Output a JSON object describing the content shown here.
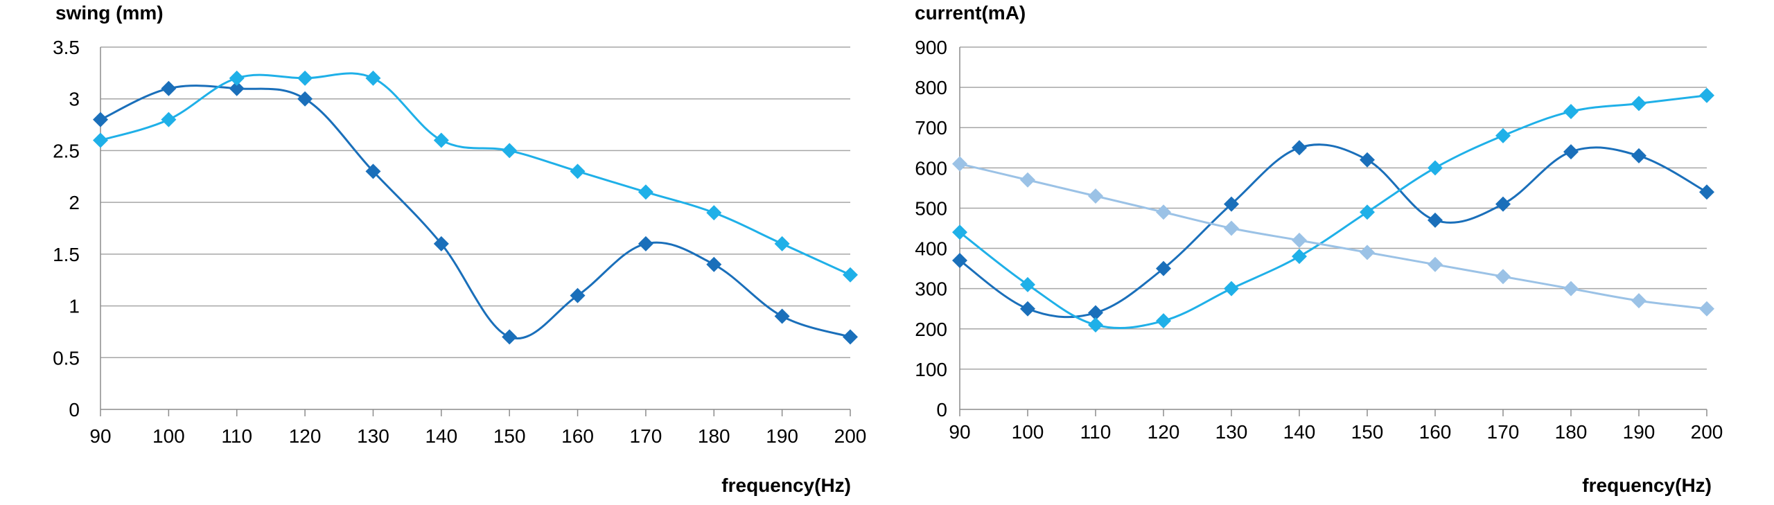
{
  "chart_data": [
    {
      "type": "line",
      "title": "",
      "ylabel": "swing (mm)",
      "xlabel": "frequency(Hz)",
      "x": [
        90,
        100,
        110,
        120,
        130,
        140,
        150,
        160,
        170,
        180,
        190,
        200
      ],
      "ylim": [
        0,
        3.5
      ],
      "yticks": [
        0,
        0.5,
        1,
        1.5,
        2,
        2.5,
        3,
        3.5
      ],
      "ytick_labels": [
        "0",
        "0.5",
        "1",
        "1.5",
        "2",
        "2.5",
        "3",
        "3.5"
      ],
      "grid": true,
      "smooth": true,
      "marker": "diamond",
      "series": [
        {
          "color": "#1a6fba",
          "values": [
            2.8,
            3.1,
            3.1,
            3.0,
            2.3,
            1.6,
            0.7,
            1.1,
            1.6,
            1.4,
            0.9,
            0.7
          ]
        },
        {
          "color": "#1fb0e8",
          "values": [
            2.6,
            2.8,
            3.2,
            3.2,
            3.2,
            2.6,
            2.5,
            2.3,
            2.1,
            1.9,
            1.6,
            1.3
          ]
        }
      ]
    },
    {
      "type": "line",
      "title": "",
      "ylabel": "current(mA)",
      "xlabel": "frequency(Hz)",
      "x": [
        90,
        100,
        110,
        120,
        130,
        140,
        150,
        160,
        170,
        180,
        190,
        200
      ],
      "ylim": [
        0,
        900
      ],
      "yticks": [
        0,
        100,
        200,
        300,
        400,
        500,
        600,
        700,
        800,
        900
      ],
      "ytick_labels": [
        "0",
        "100",
        "200",
        "300",
        "400",
        "500",
        "600",
        "700",
        "800",
        "900"
      ],
      "grid": true,
      "smooth": true,
      "marker": "diamond",
      "series": [
        {
          "color": "#1a6fba",
          "values": [
            370,
            250,
            240,
            350,
            510,
            650,
            620,
            470,
            510,
            640,
            630,
            540
          ]
        },
        {
          "color": "#1fb0e8",
          "values": [
            440,
            310,
            210,
            220,
            300,
            380,
            490,
            600,
            680,
            740,
            760,
            780
          ]
        },
        {
          "color": "#9bc2e6",
          "values": [
            610,
            570,
            530,
            490,
            450,
            420,
            390,
            360,
            330,
            300,
            270,
            250
          ]
        }
      ]
    }
  ]
}
